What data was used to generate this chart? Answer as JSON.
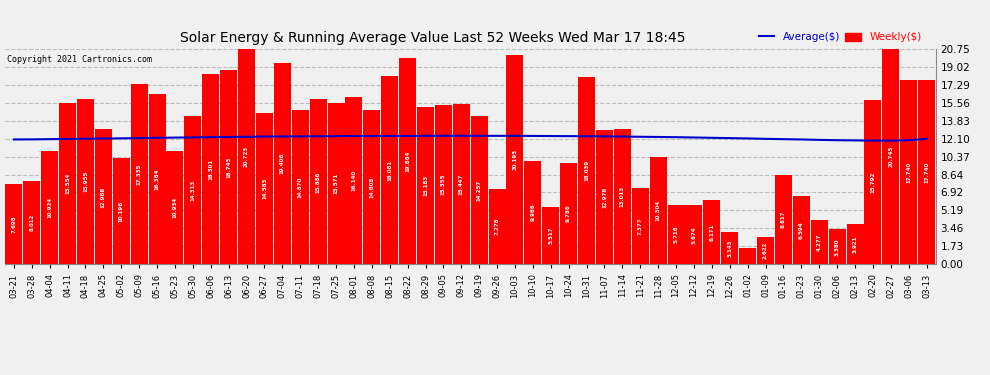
{
  "title": "Solar Energy & Running Average Value Last 52 Weeks Wed Mar 17 18:45",
  "copyright": "Copyright 2021 Cartronics.com",
  "legend_avg": "Average($)",
  "legend_weekly": "Weekly($)",
  "bar_color": "#ff0000",
  "avg_line_color": "#0000cc",
  "avg_text_color": "#0000cc",
  "weekly_text_color": "#ff0000",
  "background_color": "#f0f0f0",
  "grid_color": "#bbbbbb",
  "ytick_labels": [
    "0.00",
    "1.73",
    "3.46",
    "5.19",
    "6.92",
    "8.64",
    "10.37",
    "12.10",
    "13.83",
    "15.56",
    "17.29",
    "19.02",
    "20.75"
  ],
  "ylim": [
    0,
    20.75
  ],
  "categories": [
    "03-21",
    "03-28",
    "04-04",
    "04-11",
    "04-18",
    "04-25",
    "05-02",
    "05-09",
    "05-16",
    "05-23",
    "05-30",
    "06-06",
    "06-13",
    "06-20",
    "06-27",
    "07-04",
    "07-11",
    "07-18",
    "07-25",
    "08-01",
    "08-08",
    "08-15",
    "08-22",
    "08-29",
    "09-05",
    "09-12",
    "09-19",
    "09-26",
    "10-03",
    "10-10",
    "10-17",
    "10-24",
    "10-31",
    "11-07",
    "11-14",
    "11-21",
    "11-28",
    "12-05",
    "12-12",
    "12-19",
    "12-26",
    "01-02",
    "01-09",
    "01-16",
    "01-23",
    "01-30",
    "02-06",
    "02-13",
    "02-20",
    "02-27",
    "03-06",
    "03-13"
  ],
  "values": [
    7.698,
    8.012,
    10.924,
    15.554,
    15.955,
    12.988,
    10.196,
    17.335,
    16.384,
    10.934,
    14.313,
    18.301,
    18.745,
    20.723,
    14.583,
    19.406,
    14.87,
    15.886,
    15.571,
    16.14,
    14.808,
    18.081,
    19.864,
    15.183,
    15.355,
    15.447,
    14.257,
    7.278,
    20.195,
    9.986,
    5.517,
    9.786,
    18.039,
    12.978,
    13.013,
    7.377,
    10.304,
    5.716,
    5.674,
    6.171,
    3.143,
    1.579,
    2.622,
    8.617,
    6.594,
    4.277,
    3.38,
    3.921,
    15.792,
    20.745,
    17.74,
    17.74
  ],
  "avg_values": [
    12.02,
    12.03,
    12.05,
    12.07,
    12.09,
    12.11,
    12.13,
    12.15,
    12.18,
    12.2,
    12.22,
    12.24,
    12.26,
    12.28,
    12.3,
    12.31,
    12.32,
    12.33,
    12.34,
    12.35,
    12.35,
    12.36,
    12.36,
    12.37,
    12.37,
    12.37,
    12.37,
    12.37,
    12.37,
    12.36,
    12.35,
    12.34,
    12.33,
    12.32,
    12.3,
    12.28,
    12.26,
    12.24,
    12.21,
    12.18,
    12.15,
    12.12,
    12.08,
    12.05,
    12.02,
    11.98,
    11.95,
    11.93,
    11.91,
    11.91,
    11.95,
    12.08
  ]
}
